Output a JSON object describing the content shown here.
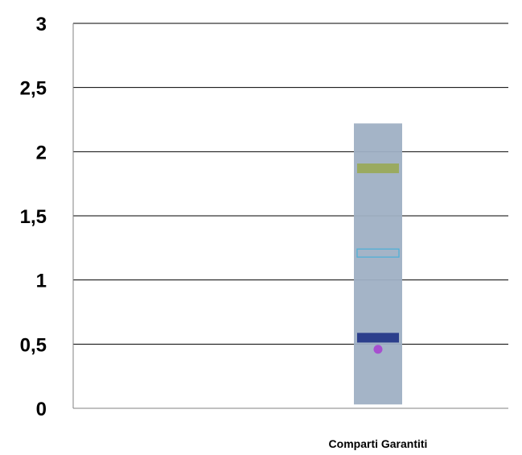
{
  "chart_data": {
    "type": "bar",
    "title": "",
    "xlabel": "",
    "ylabel": "",
    "categories": [
      "Comparti Garantiti"
    ],
    "ylim": [
      0,
      3
    ],
    "y_ticks": [
      "0",
      "0,5",
      "1",
      "1,5",
      "2",
      "2,5",
      "3"
    ],
    "y_tick_values": [
      0,
      0.5,
      1,
      1.5,
      2,
      2.5,
      3
    ],
    "grid": true,
    "range_bar": {
      "low": 0.03,
      "high": 2.22,
      "color": "#9fb0c4"
    },
    "markers": [
      {
        "shape": "band",
        "value": 1.87,
        "color": "#9aaa60"
      },
      {
        "shape": "hollow-band",
        "value": 1.21,
        "color": "#4ab0d8"
      },
      {
        "shape": "band",
        "value": 0.55,
        "color": "#2c3f8c"
      },
      {
        "shape": "dot",
        "value": 0.46,
        "color": "#a74fd0"
      }
    ]
  }
}
